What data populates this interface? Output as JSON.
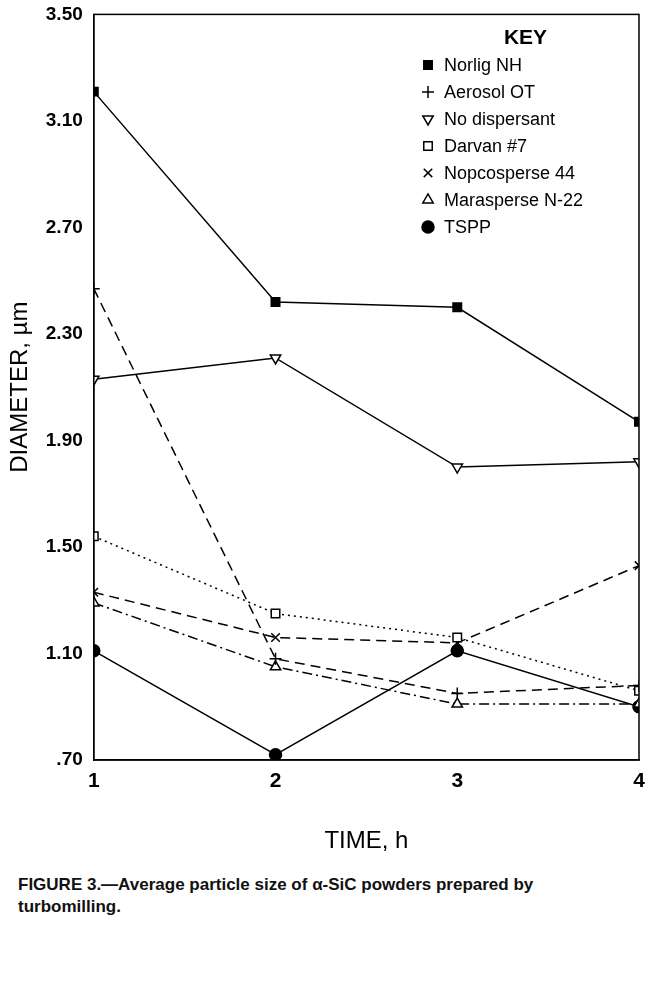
{
  "chart_data": {
    "type": "line",
    "title": "FIGURE 3.—Average particle size of α-SiC powders prepared by turbomilling.",
    "x_label": "TIME, h",
    "y_label": "DIAMETER, µm",
    "legend": "upper right",
    "legend_title": "KEY",
    "grid": false,
    "x": [
      1,
      2,
      3,
      4
    ],
    "xlim": [
      1,
      4
    ],
    "xticks": [
      1,
      2,
      3,
      4
    ],
    "ylim": [
      0.7,
      3.5
    ],
    "yticks": [
      {
        "value": 0.7,
        "label": ".70"
      },
      {
        "value": 1.1,
        "label": "1.10"
      },
      {
        "value": 1.5,
        "label": "1.50"
      },
      {
        "value": 1.9,
        "label": "1.90"
      },
      {
        "value": 2.3,
        "label": "2.30"
      },
      {
        "value": 2.7,
        "label": "2.70"
      },
      {
        "value": 3.1,
        "label": "3.10"
      },
      {
        "value": 3.5,
        "label": "3.50"
      }
    ],
    "series": [
      {
        "name": "Norlig NH",
        "color": "#000000",
        "marker": "filled_square",
        "line_style": "solid",
        "values": [
          3.21,
          2.42,
          2.4,
          1.97
        ]
      },
      {
        "name": "Aerosol OT",
        "color": "#000000",
        "marker": "plus",
        "line_style": "dashed",
        "values": [
          2.47,
          1.08,
          0.95,
          0.98
        ]
      },
      {
        "name": "No dispersant",
        "color": "#000000",
        "marker": "open_triangle_down",
        "line_style": "solid",
        "values": [
          2.13,
          2.21,
          1.8,
          1.82
        ]
      },
      {
        "name": "Darvan #7",
        "color": "#000000",
        "marker": "open_square",
        "line_style": "dotted",
        "values": [
          1.54,
          1.25,
          1.16,
          0.96
        ]
      },
      {
        "name": "Nopcosperse 44",
        "color": "#000000",
        "marker": "x",
        "line_style": "dashed",
        "values": [
          1.33,
          1.16,
          1.14,
          1.43
        ]
      },
      {
        "name": "Marasperse N-22",
        "color": "#000000",
        "marker": "open_triangle",
        "line_style": "dashdot",
        "values": [
          1.29,
          1.05,
          0.91,
          0.91
        ]
      },
      {
        "name": "TSPP",
        "color": "#000000",
        "marker": "filled_circle",
        "line_style": "solid",
        "values": [
          1.11,
          0.72,
          1.11,
          0.9
        ]
      }
    ]
  }
}
